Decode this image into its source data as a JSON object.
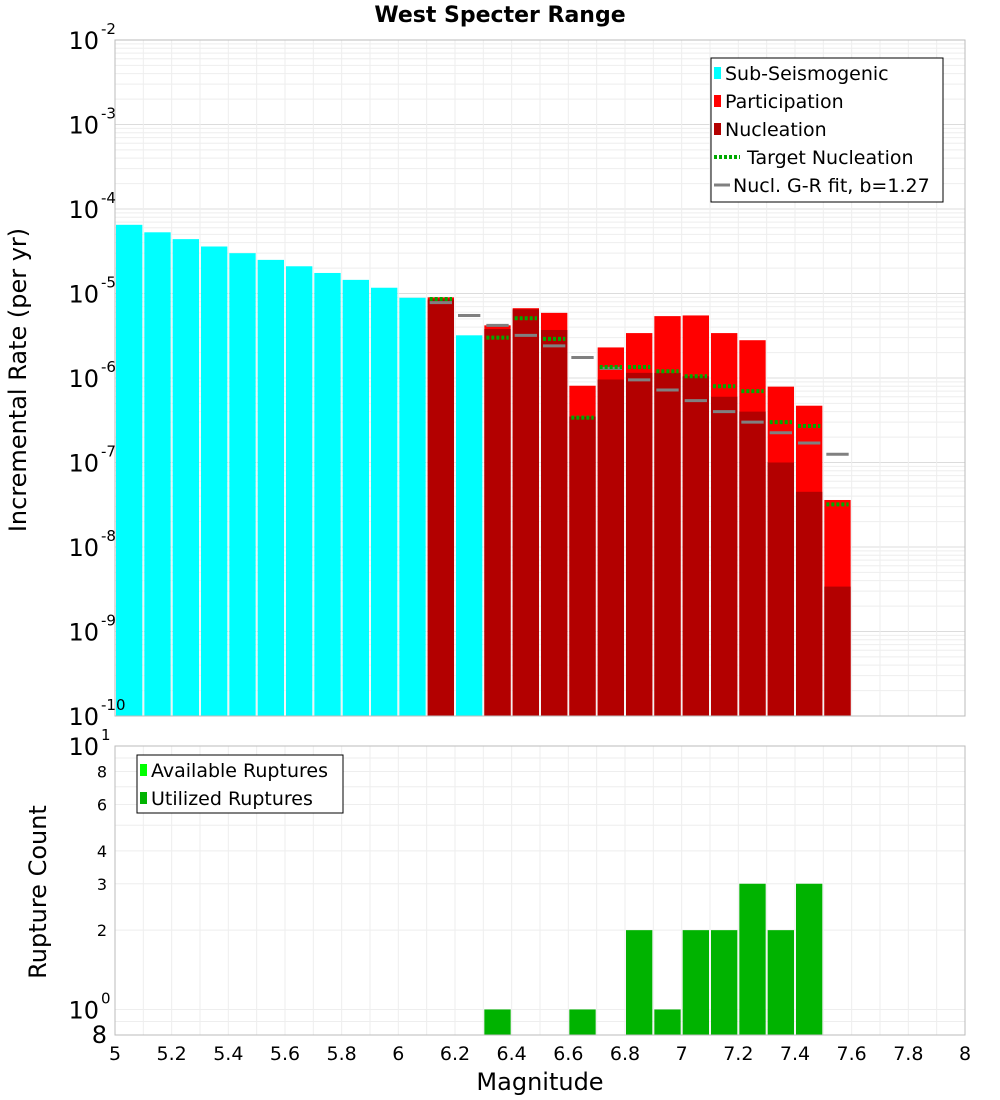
{
  "chart_data": [
    {
      "type": "bar",
      "title": "West Specter Range",
      "ylabel": "Incremental Rate (per yr)",
      "xlabel": "",
      "xlim": [
        5,
        8
      ],
      "ylim": [
        1e-10,
        0.01
      ],
      "yscale": "log",
      "ytick_labels": [
        {
          "base": "10",
          "exp": "-10",
          "value": 1e-10
        },
        {
          "base": "10",
          "exp": "-9",
          "value": 1e-09
        },
        {
          "base": "10",
          "exp": "-8",
          "value": 1e-08
        },
        {
          "base": "10",
          "exp": "-7",
          "value": 1e-07
        },
        {
          "base": "10",
          "exp": "-6",
          "value": 1e-06
        },
        {
          "base": "10",
          "exp": "-5",
          "value": 1e-05
        },
        {
          "base": "10",
          "exp": "-4",
          "value": 0.0001
        },
        {
          "base": "10",
          "exp": "-3",
          "value": 0.001
        },
        {
          "base": "10",
          "exp": "-2",
          "value": 0.01
        }
      ],
      "colors": {
        "sub_seismogenic": "#00ffff",
        "participation": "#ff0000",
        "nucleation": "#b30000",
        "target_nucleation": "#00aa00",
        "gr_fit": "#808080",
        "grid": "#e6e6e6",
        "frame": "#bbbbbb"
      },
      "legend": [
        {
          "label": "Sub-Seismogenic",
          "kind": "box",
          "color": "#00ffff"
        },
        {
          "label": "Participation",
          "kind": "box",
          "color": "#ff0000"
        },
        {
          "label": "Nucleation",
          "kind": "box",
          "color": "#b30000"
        },
        {
          "label": "Target Nucleation",
          "kind": "dotted",
          "color": "#00aa00"
        },
        {
          "label": "Nucl. G-R fit, b=1.27",
          "kind": "line",
          "color": "#808080"
        }
      ],
      "series": [
        {
          "name": "Sub-Seismogenic",
          "x": [
            5.05,
            5.15,
            5.25,
            5.35,
            5.45,
            5.55,
            5.65,
            5.75,
            5.85,
            5.95,
            6.05,
            6.25
          ],
          "values": [
            6.5e-05,
            5.3e-05,
            4.4e-05,
            3.6e-05,
            3e-05,
            2.5e-05,
            2.1e-05,
            1.75e-05,
            1.45e-05,
            1.17e-05,
            8.9e-06,
            3.2e-06
          ]
        },
        {
          "name": "Participation",
          "x": [
            6.15,
            6.35,
            6.45,
            6.55,
            6.65,
            6.75,
            6.85,
            6.95,
            7.05,
            7.15,
            7.25,
            7.35,
            7.45,
            7.55
          ],
          "values": [
            9e-06,
            4.2e-06,
            6.7e-06,
            5.9e-06,
            8.1e-07,
            2.3e-06,
            3.4e-06,
            5.4e-06,
            5.5e-06,
            3.4e-06,
            2.8e-06,
            7.9e-07,
            4.7e-07,
            3.6e-08
          ]
        },
        {
          "name": "Nucleation",
          "x": [
            6.15,
            6.35,
            6.45,
            6.55,
            6.65,
            6.75,
            6.85,
            6.95,
            7.05,
            7.15,
            7.25,
            7.35,
            7.45,
            7.55
          ],
          "values": [
            8.5e-06,
            3.8e-06,
            6.5e-06,
            3.7e-06,
            3.5e-07,
            9.6e-07,
            1.15e-06,
            1.15e-06,
            1.05e-06,
            6e-07,
            4e-07,
            1e-07,
            4.5e-08,
            3.4e-09
          ]
        },
        {
          "name": "Target Nucleation",
          "x": [
            6.15,
            6.35,
            6.45,
            6.55,
            6.65,
            6.75,
            6.85,
            6.95,
            7.05,
            7.15,
            7.25,
            7.35,
            7.45,
            7.55
          ],
          "values": [
            8.6e-06,
            3e-06,
            5.1e-06,
            2.9e-06,
            3.4e-07,
            1.35e-06,
            1.35e-06,
            1.2e-06,
            1.05e-06,
            8e-07,
            7e-07,
            3e-07,
            2.7e-07,
            3.2e-08
          ]
        },
        {
          "name": "Nucl. G-R fit, b=1.27",
          "x": [
            6.15,
            6.25,
            6.35,
            6.45,
            6.55,
            6.65,
            6.75,
            6.85,
            6.95,
            7.05,
            7.15,
            7.25,
            7.35,
            7.45,
            7.55
          ],
          "values": [
            7.8e-06,
            5.5e-06,
            4.2e-06,
            3.2e-06,
            2.4e-06,
            1.75e-06,
            1.3e-06,
            9.5e-07,
            7.2e-07,
            5.4e-07,
            4e-07,
            3e-07,
            2.25e-07,
            1.7e-07,
            1.25e-07
          ]
        }
      ]
    },
    {
      "type": "bar",
      "title": "",
      "ylabel": "Rupture Count",
      "xlabel": "Magnitude",
      "xlim": [
        5,
        8
      ],
      "ylim": [
        0.8,
        10
      ],
      "yscale": "log",
      "x_tick_labels": [
        "5",
        "5.2",
        "5.4",
        "5.6",
        "5.8",
        "6",
        "6.2",
        "6.4",
        "6.6",
        "6.8",
        "7",
        "7.2",
        "7.4",
        "7.6",
        "7.8",
        "8"
      ],
      "y_major_labels": [
        {
          "base": "10",
          "exp": "0",
          "value": 1
        },
        {
          "base": "10",
          "exp": "1",
          "value": 10
        }
      ],
      "y_minor_labels": [
        "8",
        "2",
        "3",
        "4",
        "6",
        "8"
      ],
      "colors": {
        "available": "#00ff00",
        "utilized": "#00b300"
      },
      "legend": [
        {
          "label": "Available Ruptures",
          "kind": "box",
          "color": "#00ff00"
        },
        {
          "label": "Utilized Ruptures",
          "kind": "box",
          "color": "#00b300"
        }
      ],
      "series": [
        {
          "name": "Utilized Ruptures",
          "x": [
            6.35,
            6.65,
            6.85,
            6.95,
            7.05,
            7.15,
            7.25,
            7.35,
            7.45
          ],
          "values": [
            1,
            1,
            2,
            1,
            2,
            2,
            3,
            2,
            3
          ]
        }
      ]
    }
  ]
}
